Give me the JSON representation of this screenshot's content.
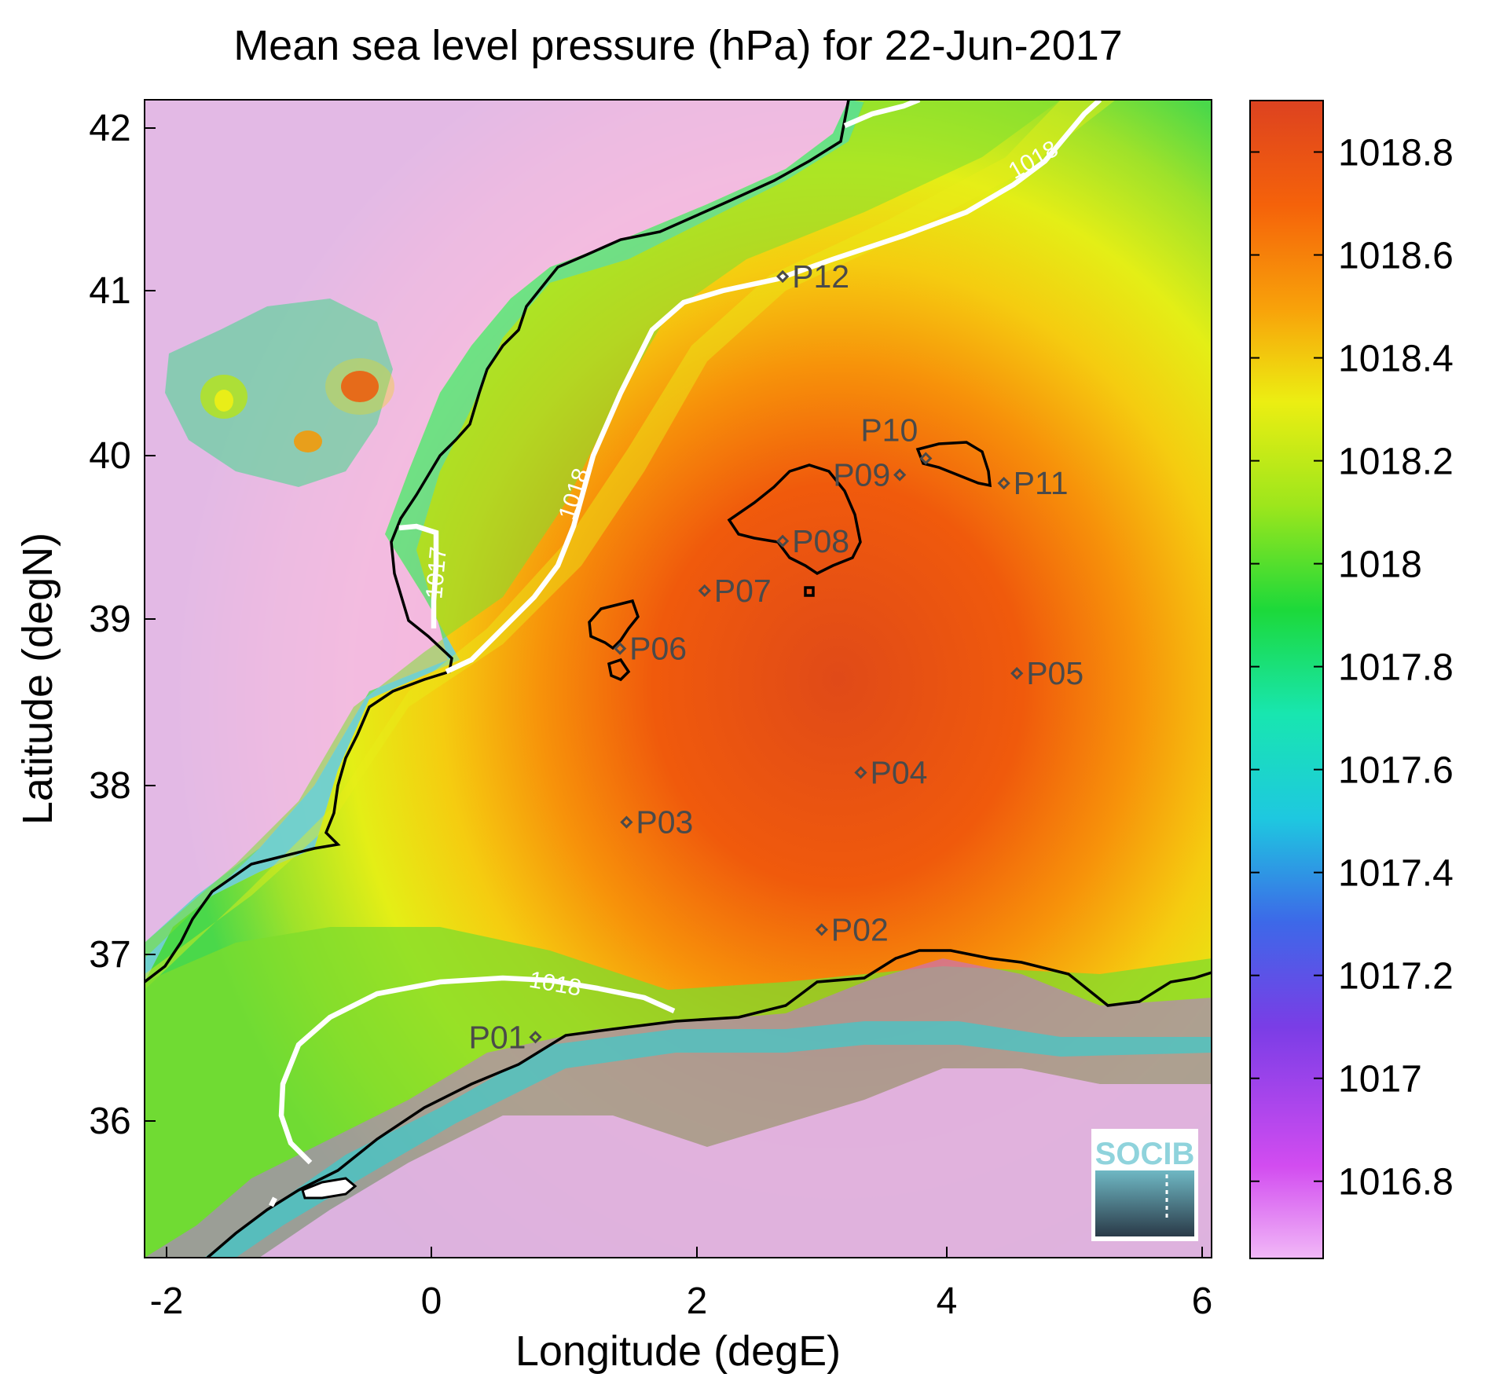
{
  "title": "Mean sea level pressure (hPa) for 22-Jun-2017",
  "xlabel": "Longitude (degE)",
  "ylabel": "Latitude (degN)",
  "x_ticks": [
    "-2",
    "0",
    "2",
    "4",
    "6"
  ],
  "y_ticks": [
    "36",
    "37",
    "38",
    "39",
    "40",
    "41",
    "42"
  ],
  "colorbar_ticks": [
    "1016.8",
    "1017",
    "1017.2",
    "1017.4",
    "1017.6",
    "1017.8",
    "1018",
    "1018.2",
    "1018.4",
    "1018.6",
    "1018.8"
  ],
  "contour_labels": [
    "1018",
    "1018",
    "1017",
    "1018"
  ],
  "logo": "SOCIB",
  "chart_data": {
    "type": "heatmap",
    "title": "Mean sea level pressure (hPa) for 22-Jun-2017",
    "xlabel": "Longitude (degE)",
    "ylabel": "Latitude (degN)",
    "xlim": [
      -2.2,
      6.1
    ],
    "ylim": [
      35.2,
      42.2
    ],
    "colorbar_range": [
      1016.65,
      1018.9
    ],
    "colorbar_ticks": [
      1016.8,
      1017,
      1017.2,
      1017.4,
      1017.6,
      1017.8,
      1018,
      1018.2,
      1018.4,
      1018.6,
      1018.8
    ],
    "high_pressure_center": {
      "lon": 3.2,
      "lat": 38.8,
      "value": 1018.85
    },
    "points": [
      {
        "name": "P01",
        "lon": 0.8,
        "lat": 36.5
      },
      {
        "name": "P02",
        "lon": 3.0,
        "lat": 37.15
      },
      {
        "name": "P03",
        "lon": 1.5,
        "lat": 37.8
      },
      {
        "name": "P04",
        "lon": 3.3,
        "lat": 38.1
      },
      {
        "name": "P05",
        "lon": 4.5,
        "lat": 38.7
      },
      {
        "name": "P06",
        "lon": 1.45,
        "lat": 38.85
      },
      {
        "name": "P07",
        "lon": 2.1,
        "lat": 39.2
      },
      {
        "name": "P08",
        "lon": 2.7,
        "lat": 39.5
      },
      {
        "name": "P09",
        "lon": 3.6,
        "lat": 39.9
      },
      {
        "name": "P10",
        "lon": 3.8,
        "lat": 40.0
      },
      {
        "name": "P11",
        "lon": 4.4,
        "lat": 39.85
      },
      {
        "name": "P12",
        "lon": 2.7,
        "lat": 41.1
      }
    ]
  }
}
